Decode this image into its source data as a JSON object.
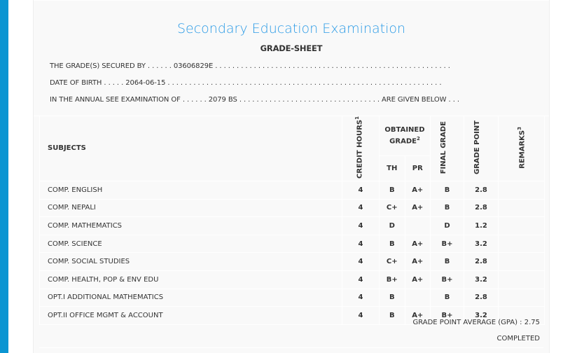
{
  "colors": {
    "accent": "#0b95d2",
    "title": "#2b9be6"
  },
  "title": "Secondary Education Examination",
  "subtitle": "GRADE-SHEET",
  "info": {
    "secured_by": "THE GRADE(S) SECURED BY . . . . . . 03606829E . . . . . . . . . . . . . . . . . . . . . . . . . . . . . . . . . . . . . . . . . . . . . . . . . . . . . . .",
    "dob": "DATE OF BIRTH . . . . . 2064-06-15 . . . . . . . . . . . . . . . . . . . . . . . . . . . . . . . . . . . . . . . . . . . . . . . . . . . . . . . . . . . . . . . .",
    "exam": "IN THE ANNUAL SEE EXAMINATION OF . . . . . . 2079 BS . . . . . . . . . . . . . . . . . . . . . . . . . . . . . . . . . ARE GIVEN BELOW . . ."
  },
  "headers": {
    "subjects": "SUBJECTS",
    "credit": "CREDIT HOURS",
    "credit_sup": "1",
    "obtained": "OBTAINED GRADE",
    "obtained_sup": "2",
    "th": "TH",
    "pr": "PR",
    "final": "FINAL GRADE",
    "gp": "GRADE POINT",
    "remarks": "REMARKS",
    "remarks_sup": "3"
  },
  "rows": [
    {
      "subject": "COMP. ENGLISH",
      "credit": "4",
      "th": "B",
      "pr": "A+",
      "final": "B",
      "gp": "2.8",
      "remarks": ""
    },
    {
      "subject": "COMP. NEPALI",
      "credit": "4",
      "th": "C+",
      "pr": "A+",
      "final": "B",
      "gp": "2.8",
      "remarks": ""
    },
    {
      "subject": "COMP. MATHEMATICS",
      "credit": "4",
      "th": "D",
      "pr": "",
      "final": "D",
      "gp": "1.2",
      "remarks": ""
    },
    {
      "subject": "COMP. SCIENCE",
      "credit": "4",
      "th": "B",
      "pr": "A+",
      "final": "B+",
      "gp": "3.2",
      "remarks": ""
    },
    {
      "subject": "COMP. SOCIAL STUDIES",
      "credit": "4",
      "th": "C+",
      "pr": "A+",
      "final": "B",
      "gp": "2.8",
      "remarks": ""
    },
    {
      "subject": "COMP. HEALTH, POP & ENV EDU",
      "credit": "4",
      "th": "B+",
      "pr": "A+",
      "final": "B+",
      "gp": "3.2",
      "remarks": ""
    },
    {
      "subject": "OPT.I ADDITIONAL MATHEMATICS",
      "credit": "4",
      "th": "B",
      "pr": "",
      "final": "B",
      "gp": "2.8",
      "remarks": ""
    },
    {
      "subject": "OPT.II OFFICE MGMT & ACCOUNT",
      "credit": "4",
      "th": "B",
      "pr": "A+",
      "final": "B+",
      "gp": "3.2",
      "remarks": ""
    }
  ],
  "gpa": "GRADE POINT AVERAGE (GPA) : 2.75",
  "status": "COMPLETED"
}
